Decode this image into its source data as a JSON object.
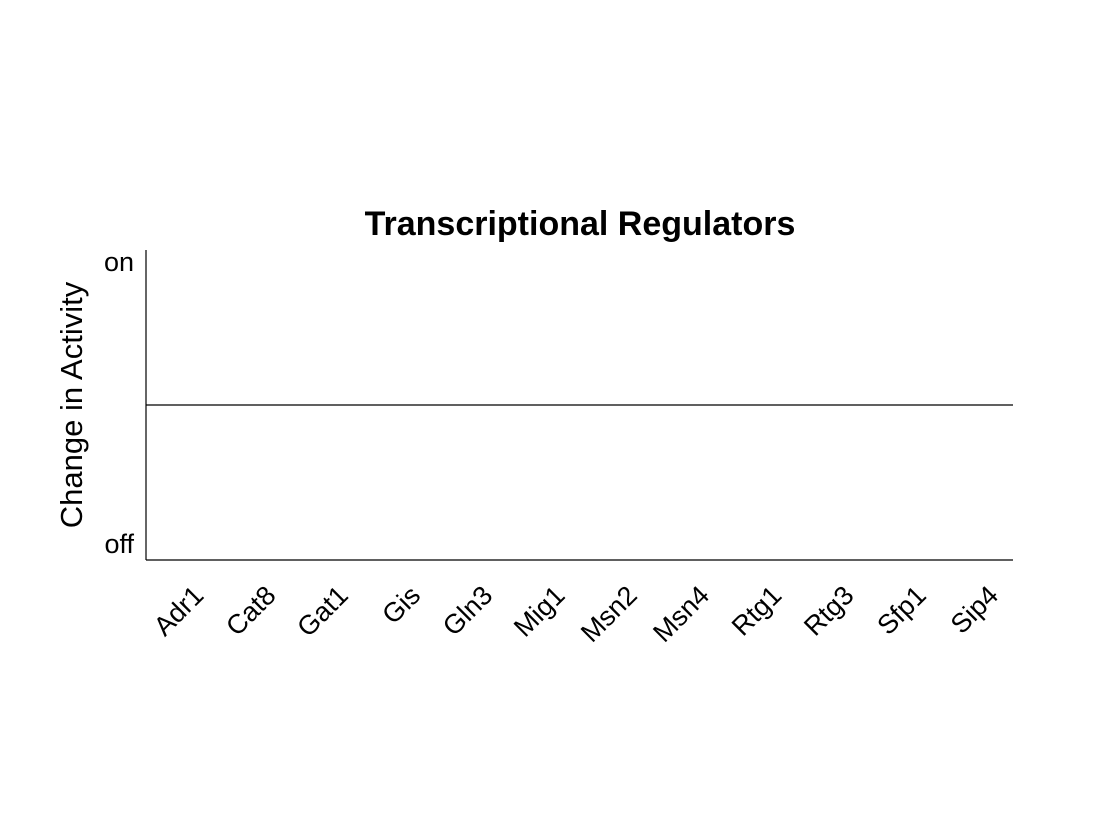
{
  "chart_data": {
    "type": "bar",
    "title": "Transcriptional Regulators",
    "ylabel": "Change in Activity",
    "categories": [
      "Adr1",
      "Cat8",
      "Gat1",
      "Gis",
      "Gln3",
      "Mig1",
      "Msn2",
      "Msn4",
      "Rtg1",
      "Rtg3",
      "Sfp1",
      "Sip4"
    ],
    "ylim": [
      -1.1,
      1.1
    ],
    "yticks": [
      {
        "value": -1,
        "label": "off"
      },
      {
        "value": 1,
        "label": "on"
      }
    ],
    "grid": false
  }
}
